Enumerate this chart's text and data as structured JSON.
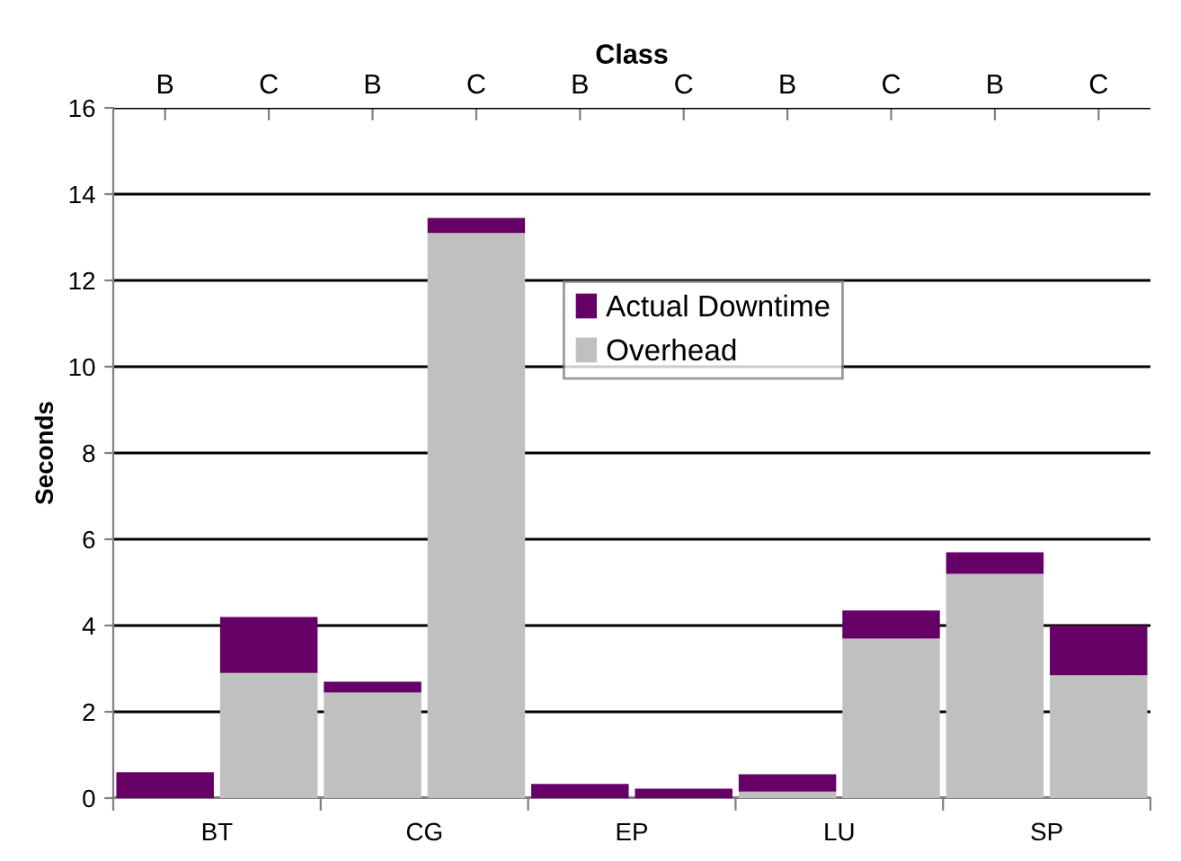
{
  "chart_data": {
    "type": "bar",
    "stacked": true,
    "x2label": "Class",
    "ylabel": "Seconds",
    "categories": [
      "B",
      "C",
      "B",
      "C",
      "B",
      "C",
      "B",
      "C",
      "B",
      "C"
    ],
    "series": [
      {
        "name": "Overhead",
        "color": "#c0c0c0",
        "values": [
          null,
          2.9,
          2.45,
          13.1,
          null,
          null,
          0.15,
          3.7,
          5.2,
          2.85
        ]
      },
      {
        "name": "Actual Downtime",
        "color": "#660066",
        "values": [
          0.6,
          1.3,
          0.25,
          0.35,
          0.33,
          0.22,
          0.4,
          0.65,
          0.5,
          1.15
        ]
      }
    ],
    "annotations": [
      "BT",
      "CG",
      "EP",
      "LU",
      "SP"
    ],
    "ylim": [
      0,
      16
    ],
    "yticks": [
      0,
      2,
      4,
      6,
      8,
      10,
      12,
      14,
      16
    ],
    "grid": "y",
    "legend": "top right"
  }
}
